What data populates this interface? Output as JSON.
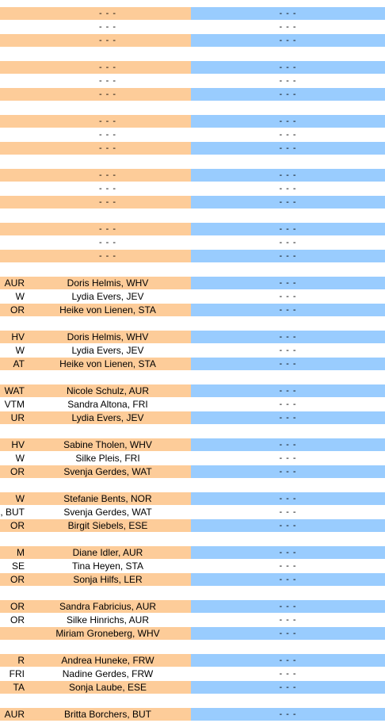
{
  "colors": {
    "orange": "#fdcc99",
    "blue": "#99ccfe"
  },
  "rows": [
    {
      "a": "",
      "b": "- - -",
      "c": "- - -",
      "shade": true
    },
    {
      "a": "",
      "b": "- - -",
      "c": "- - -",
      "shade": false
    },
    {
      "a": "",
      "b": "- - -",
      "c": "- - -",
      "shade": true
    },
    {
      "a": "",
      "b": "",
      "c": "",
      "shade": false,
      "blank": true
    },
    {
      "a": "",
      "b": "- - -",
      "c": "- - -",
      "shade": true
    },
    {
      "a": "",
      "b": "- - -",
      "c": "- - -",
      "shade": false
    },
    {
      "a": "",
      "b": "- - -",
      "c": "- - -",
      "shade": true
    },
    {
      "a": "",
      "b": "",
      "c": "",
      "shade": false,
      "blank": true
    },
    {
      "a": "",
      "b": "- - -",
      "c": "- - -",
      "shade": true
    },
    {
      "a": "",
      "b": "- - -",
      "c": "- - -",
      "shade": false
    },
    {
      "a": "",
      "b": "- - -",
      "c": "- - -",
      "shade": true
    },
    {
      "a": "",
      "b": "",
      "c": "",
      "shade": false,
      "blank": true
    },
    {
      "a": "",
      "b": "- - -",
      "c": "- - -",
      "shade": true
    },
    {
      "a": "",
      "b": "- - -",
      "c": "- - -",
      "shade": false
    },
    {
      "a": "",
      "b": "- - -",
      "c": "- - -",
      "shade": true
    },
    {
      "a": "",
      "b": "",
      "c": "",
      "shade": false,
      "blank": true
    },
    {
      "a": "",
      "b": "- - -",
      "c": "- - -",
      "shade": true
    },
    {
      "a": "",
      "b": "- - -",
      "c": "- - -",
      "shade": false
    },
    {
      "a": "",
      "b": "- - -",
      "c": "- - -",
      "shade": true
    },
    {
      "a": "",
      "b": "",
      "c": "",
      "shade": false,
      "blank": true
    },
    {
      "a": "AUR",
      "b": "Doris Helmis, WHV",
      "c": "- - -",
      "shade": true
    },
    {
      "a": "W",
      "b": "Lydia Evers, JEV",
      "c": "- - -",
      "shade": false
    },
    {
      "a": "OR",
      "b": "Heike von Lienen, STA",
      "c": "- - -",
      "shade": true
    },
    {
      "a": "",
      "b": "",
      "c": "",
      "shade": false,
      "blank": true
    },
    {
      "a": "HV",
      "b": "Doris Helmis, WHV",
      "c": "- - -",
      "shade": true
    },
    {
      "a": "W",
      "b": "Lydia Evers, JEV",
      "c": "- - -",
      "shade": false
    },
    {
      "a": "AT",
      "b": "Heike von Lienen, STA",
      "c": "- - -",
      "shade": true
    },
    {
      "a": "",
      "b": "",
      "c": "",
      "shade": false,
      "blank": true
    },
    {
      "a": "WAT",
      "b": "Nicole Schulz, AUR",
      "c": "- - -",
      "shade": true
    },
    {
      "a": "VTM",
      "b": "Sandra Altona, FRI",
      "c": "- - -",
      "shade": false
    },
    {
      "a": "UR",
      "b": "Lydia Evers, JEV",
      "c": "- - -",
      "shade": true
    },
    {
      "a": "",
      "b": "",
      "c": "",
      "shade": false,
      "blank": true
    },
    {
      "a": "HV",
      "b": "Sabine Tholen, WHV",
      "c": "- - -",
      "shade": true
    },
    {
      "a": "W",
      "b": "Silke Pleis, FRI",
      "c": "- - -",
      "shade": false
    },
    {
      "a": "OR",
      "b": "Svenja Gerdes, WAT",
      "c": "- - -",
      "shade": true
    },
    {
      "a": "",
      "b": "",
      "c": "",
      "shade": false,
      "blank": true
    },
    {
      "a": "W",
      "b": "Stefanie Bents, NOR",
      "c": "- - -",
      "shade": true
    },
    {
      "a": ", BUT",
      "b": "Svenja Gerdes, WAT",
      "c": "- - -",
      "shade": false
    },
    {
      "a": "OR",
      "b": "Birgit Siebels, ESE",
      "c": "- - -",
      "shade": true
    },
    {
      "a": "",
      "b": "",
      "c": "",
      "shade": false,
      "blank": true
    },
    {
      "a": "M",
      "b": "Diane Idler, AUR",
      "c": "- - -",
      "shade": true
    },
    {
      "a": "SE",
      "b": "Tina Heyen, STA",
      "c": "- - -",
      "shade": false
    },
    {
      "a": "OR",
      "b": "Sonja Hilfs, LER",
      "c": "- - -",
      "shade": true
    },
    {
      "a": "",
      "b": "",
      "c": "",
      "shade": false,
      "blank": true
    },
    {
      "a": "OR",
      "b": "Sandra Fabricius, AUR",
      "c": "- - -",
      "shade": true
    },
    {
      "a": "OR",
      "b": "Silke Hinrichs, AUR",
      "c": "- - -",
      "shade": false
    },
    {
      "a": "",
      "b": "Miriam Groneberg, WHV",
      "c": "- - -",
      "shade": true
    },
    {
      "a": "",
      "b": "",
      "c": "",
      "shade": false,
      "blank": true
    },
    {
      "a": "R",
      "b": "Andrea Huneke, FRW",
      "c": "- - -",
      "shade": true
    },
    {
      "a": "FRI",
      "b": "Nadine Gerdes, FRW",
      "c": "- - -",
      "shade": false
    },
    {
      "a": "TA",
      "b": "Sonja Laube, ESE",
      "c": "- - -",
      "shade": true
    },
    {
      "a": "",
      "b": "",
      "c": "",
      "shade": false,
      "blank": true
    },
    {
      "a": "AUR",
      "b": "Britta Borchers, BUT",
      "c": "- - -",
      "shade": true
    }
  ]
}
